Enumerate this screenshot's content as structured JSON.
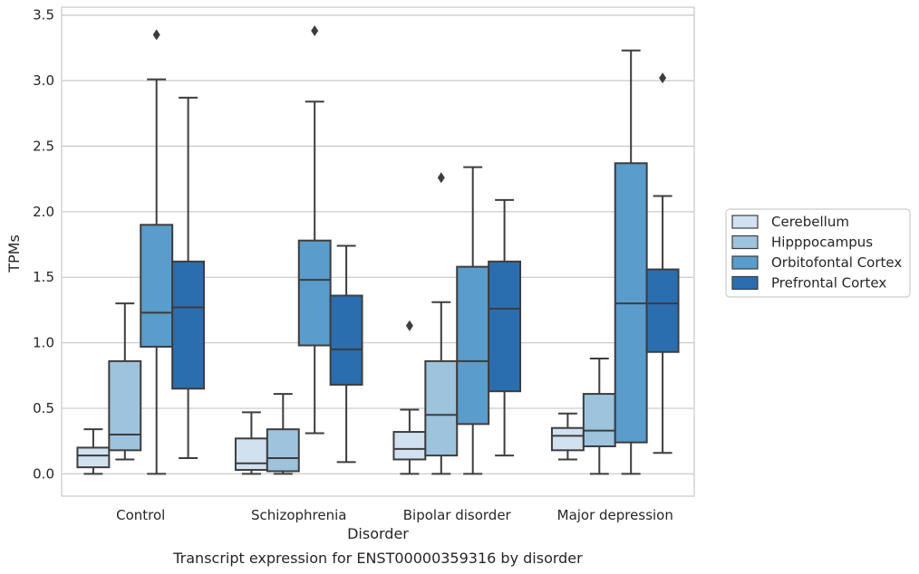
{
  "chart_data": {
    "type": "box",
    "caption": "Transcript expression for ENST00000359316 by disorder",
    "xlabel": "Disorder",
    "ylabel": "TPMs",
    "ylim": [
      -0.17,
      3.56
    ],
    "yticks": [
      "0.0",
      "0.5",
      "1.0",
      "1.5",
      "2.0",
      "2.5",
      "3.0",
      "3.5"
    ],
    "ytick_values": [
      0,
      0.5,
      1.0,
      1.5,
      2.0,
      2.5,
      3.0,
      3.5
    ],
    "grid": "horizontal",
    "legend_position": "right",
    "categories": [
      "Control",
      "Schizophrenia",
      "Bipolar disorder",
      "Major depression"
    ],
    "series": [
      {
        "name": "Cerebellum",
        "color": "#d1e1f0",
        "boxes": [
          {
            "whisker_low": 0.0,
            "q1": 0.05,
            "median": 0.14,
            "q3": 0.2,
            "whisker_high": 0.34,
            "outliers": []
          },
          {
            "whisker_low": 0.0,
            "q1": 0.03,
            "median": 0.08,
            "q3": 0.27,
            "whisker_high": 0.47,
            "outliers": []
          },
          {
            "whisker_low": 0.0,
            "q1": 0.11,
            "median": 0.19,
            "q3": 0.32,
            "whisker_high": 0.49,
            "outliers": [
              1.13
            ]
          },
          {
            "whisker_low": 0.11,
            "q1": 0.18,
            "median": 0.29,
            "q3": 0.35,
            "whisker_high": 0.46,
            "outliers": []
          }
        ]
      },
      {
        "name": "Hipppocampus",
        "color": "#9dc3dd",
        "boxes": [
          {
            "whisker_low": 0.11,
            "q1": 0.18,
            "median": 0.3,
            "q3": 0.86,
            "whisker_high": 1.3,
            "outliers": []
          },
          {
            "whisker_low": 0.0,
            "q1": 0.02,
            "median": 0.12,
            "q3": 0.34,
            "whisker_high": 0.61,
            "outliers": []
          },
          {
            "whisker_low": 0.0,
            "q1": 0.14,
            "median": 0.45,
            "q3": 0.86,
            "whisker_high": 1.31,
            "outliers": [
              2.26
            ]
          },
          {
            "whisker_low": 0.0,
            "q1": 0.21,
            "median": 0.33,
            "q3": 0.61,
            "whisker_high": 0.88,
            "outliers": []
          }
        ]
      },
      {
        "name": "Orbitofontal Cortex",
        "color": "#5a9ccb",
        "boxes": [
          {
            "whisker_low": 0.0,
            "q1": 0.97,
            "median": 1.23,
            "q3": 1.9,
            "whisker_high": 3.01,
            "outliers": [
              3.35
            ]
          },
          {
            "whisker_low": 0.31,
            "q1": 0.98,
            "median": 1.48,
            "q3": 1.78,
            "whisker_high": 2.84,
            "outliers": [
              3.38
            ]
          },
          {
            "whisker_low": 0.0,
            "q1": 0.38,
            "median": 0.86,
            "q3": 1.58,
            "whisker_high": 2.34,
            "outliers": []
          },
          {
            "whisker_low": 0.0,
            "q1": 0.24,
            "median": 1.3,
            "q3": 2.37,
            "whisker_high": 3.23,
            "outliers": []
          }
        ]
      },
      {
        "name": "Prefrontal Cortex",
        "color": "#2a6eb0",
        "boxes": [
          {
            "whisker_low": 0.12,
            "q1": 0.65,
            "median": 1.27,
            "q3": 1.62,
            "whisker_high": 2.87,
            "outliers": []
          },
          {
            "whisker_low": 0.09,
            "q1": 0.68,
            "median": 0.95,
            "q3": 1.36,
            "whisker_high": 1.74,
            "outliers": []
          },
          {
            "whisker_low": 0.14,
            "q1": 0.63,
            "median": 1.26,
            "q3": 1.62,
            "whisker_high": 2.09,
            "outliers": []
          },
          {
            "whisker_low": 0.16,
            "q1": 0.93,
            "median": 1.3,
            "q3": 1.56,
            "whisker_high": 2.12,
            "outliers": [
              3.02
            ]
          }
        ]
      }
    ]
  }
}
